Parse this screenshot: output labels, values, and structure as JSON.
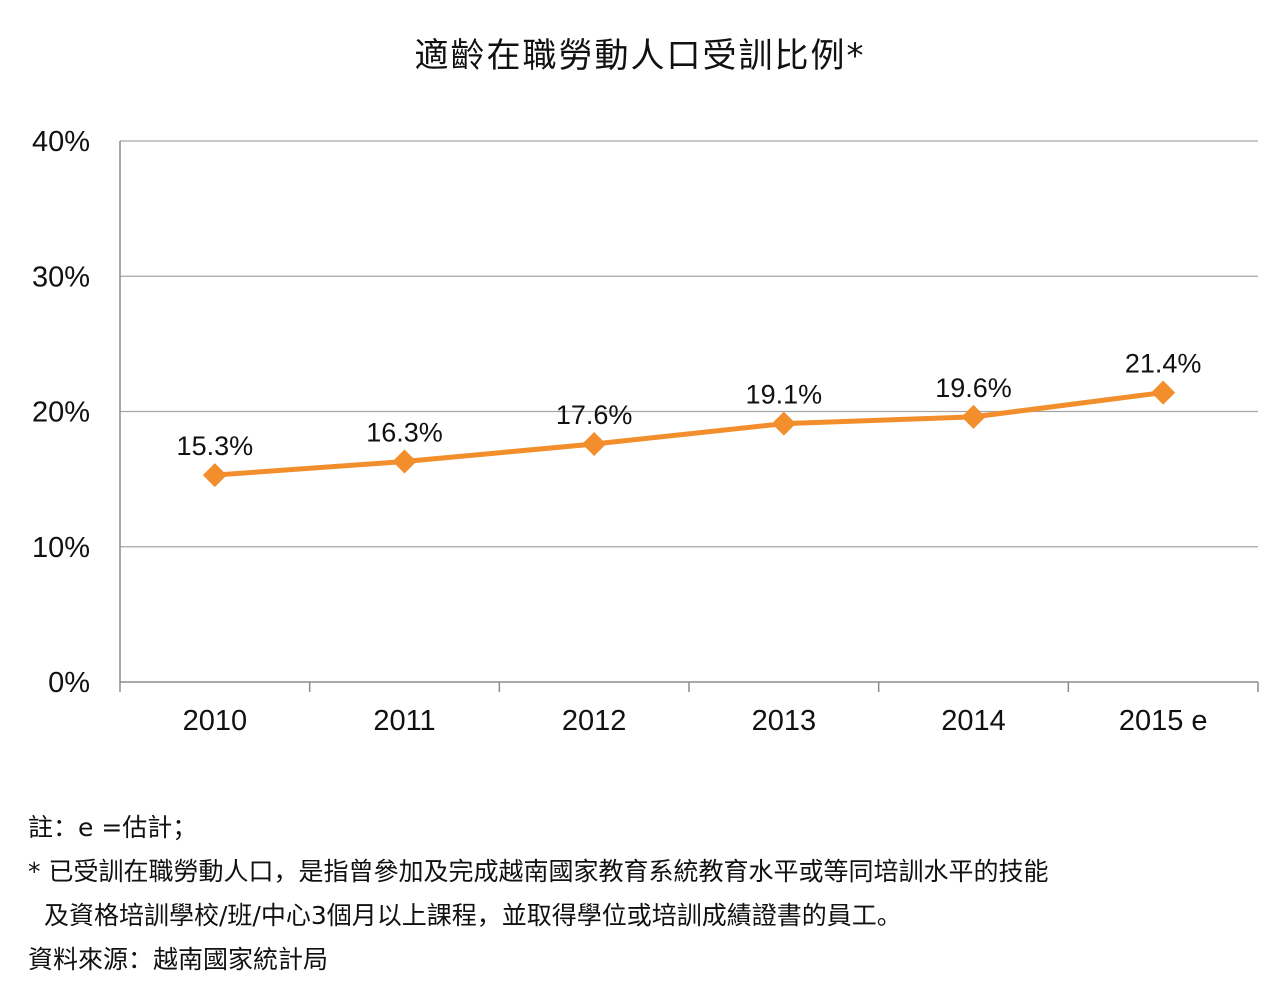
{
  "chart_data": {
    "type": "line",
    "title": "適齡在職勞動人口受訓比例*",
    "categories": [
      "2010",
      "2011",
      "2012",
      "2013",
      "2014",
      "2015 e"
    ],
    "series": [
      {
        "name": "受訓比例",
        "values": [
          15.3,
          16.3,
          17.6,
          19.1,
          19.6,
          21.4
        ]
      }
    ],
    "data_labels": [
      "15.3%",
      "16.3%",
      "17.6%",
      "19.1%",
      "19.6%",
      "21.4%"
    ],
    "y_ticks": [
      0,
      10,
      20,
      30,
      40
    ],
    "y_tick_labels": [
      "0%",
      "10%",
      "20%",
      "30%",
      "40%"
    ],
    "ylim": [
      0,
      40
    ],
    "xlabel": "",
    "ylabel": "",
    "grid": true,
    "legend": "none",
    "line_color": "#f28e2b"
  },
  "notes": {
    "note1": "註：e =估計；",
    "note2_line1": "* 已受訓在職勞動人口，是指曾參加及完成越南國家教育系統教育水平或等同培訓水平的技能",
    "note2_line2": "及資格培訓學校/班/中心3個月以上課程，並取得學位或培訓成績證書的員工。",
    "source": "資料來源：越南國家統計局"
  }
}
